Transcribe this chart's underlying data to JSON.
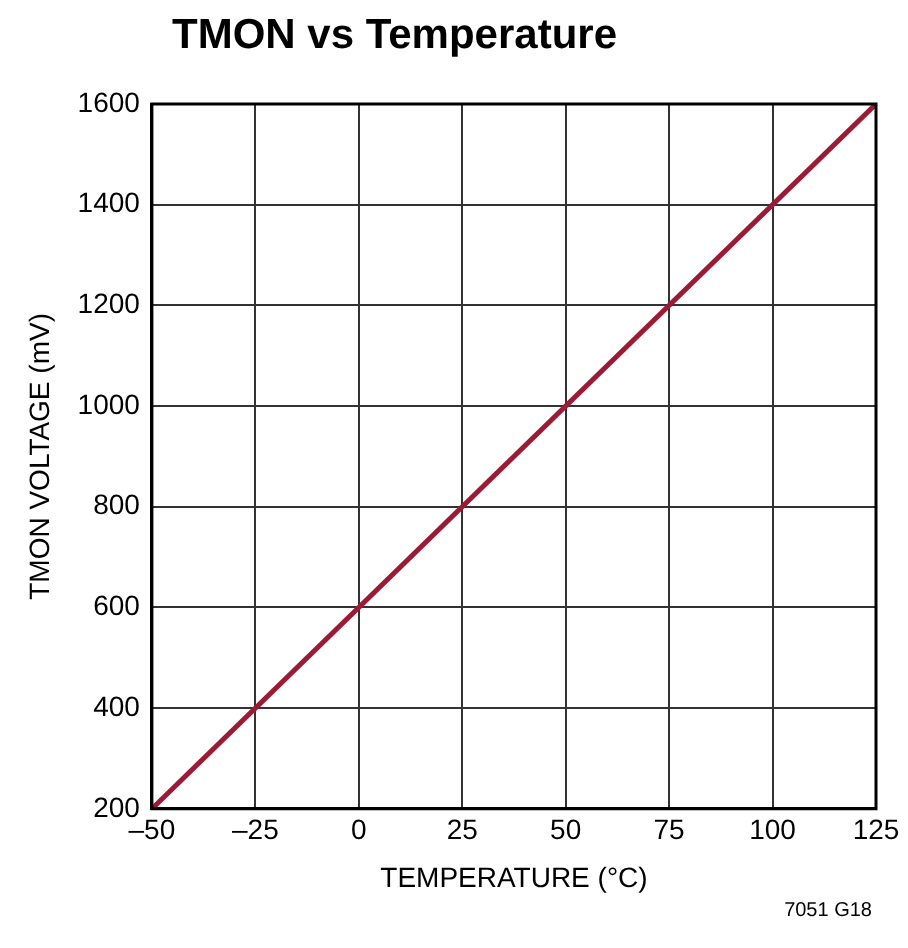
{
  "chart_data": {
    "type": "line",
    "title": "TMON vs Temperature",
    "xlabel": "TEMPERATURE (°C)",
    "ylabel": "TMON VOLTAGE (mV)",
    "x": [
      -50,
      125
    ],
    "series": [
      {
        "color": "#9b1b35",
        "values": [
          200,
          1600
        ]
      }
    ],
    "xlim": [
      -50,
      125
    ],
    "xticks": [
      {
        "value": -50,
        "label": "–50"
      },
      {
        "value": -25,
        "label": "–25"
      },
      0,
      25,
      50,
      75,
      100,
      125
    ],
    "ylim": [
      200,
      1600
    ],
    "yticks": [
      200,
      400,
      600,
      800,
      1000,
      1200,
      1400,
      1600
    ],
    "grid": true,
    "legend": false,
    "marker": "none",
    "line_style": "solid",
    "annotations": [
      "7051 G18"
    ]
  }
}
